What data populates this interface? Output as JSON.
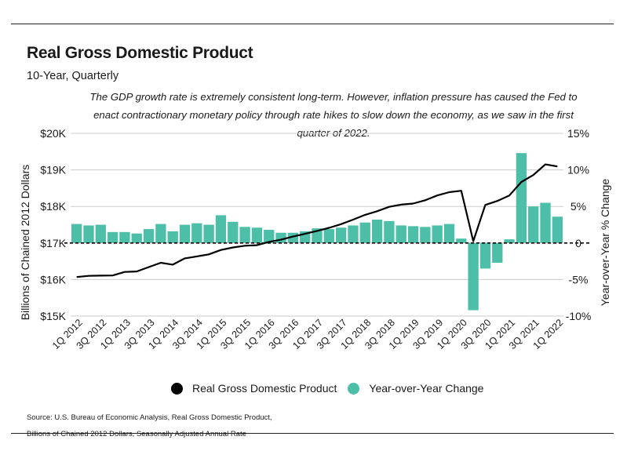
{
  "title": "Real Gross Domestic Product",
  "subtitle": "10-Year, Quarterly",
  "annotation": "The GDP growth rate is extremely consistent long-term. However, inflation pressure has caused the Fed to enact contractionary monetary policy through rate hikes to slow down the economy, as we saw in the first quarter of 2022.",
  "legend": {
    "line_label": "Real Gross Domestic Product",
    "bar_label": "Year-over-Year Change"
  },
  "source_lines": [
    "Source:  U.S. Bureau of Economic Analysis, Real Gross Domestic Product,",
    "Billions of Chained 2012 Dollars, Seasonally Adjusted Annual Rate"
  ],
  "colors": {
    "line": "#000000",
    "bar": "#4dbfa8",
    "grid": "#cccccc",
    "zero_line": "#000000"
  },
  "chart_data": {
    "type": "bar",
    "x": [
      "1Q 2012",
      "2Q 2012",
      "3Q 2012",
      "4Q 2012",
      "1Q 2013",
      "2Q 2013",
      "3Q 2013",
      "4Q 2013",
      "1Q 2014",
      "2Q 2014",
      "3Q 2014",
      "4Q 2014",
      "1Q 2015",
      "2Q 2015",
      "3Q 2015",
      "4Q 2015",
      "1Q 2016",
      "2Q 2016",
      "3Q 2016",
      "4Q 2016",
      "1Q 2017",
      "2Q 2017",
      "3Q 2017",
      "4Q 2017",
      "1Q 2018",
      "2Q 2018",
      "3Q 2018",
      "4Q 2018",
      "1Q 2019",
      "2Q 2019",
      "3Q 2019",
      "4Q 2019",
      "1Q 2020",
      "2Q 2020",
      "3Q 2020",
      "4Q 2020",
      "1Q 2021",
      "2Q 2021",
      "3Q 2021",
      "4Q 2021",
      "1Q 2022"
    ],
    "x_tick_labels": [
      "1Q 2012",
      "3Q 2012",
      "1Q 2013",
      "3Q 2013",
      "1Q 2014",
      "3Q 2014",
      "1Q 2015",
      "3Q 2015",
      "1Q 2016",
      "3Q 2016",
      "1Q 2017",
      "3Q 2017",
      "1Q 2018",
      "3Q 2018",
      "1Q 2019",
      "3Q 2019",
      "1Q 2020",
      "3Q 2020",
      "1Q 2021",
      "3Q 2021",
      "1Q 2022"
    ],
    "series": [
      {
        "name": "Real Gross Domestic Product",
        "type": "line",
        "axis": "left",
        "values": [
          16068,
          16100,
          16107,
          16112,
          16209,
          16222,
          16341,
          16460,
          16407,
          16580,
          16634,
          16688,
          16810,
          16877,
          16925,
          16940,
          17030,
          17090,
          17175,
          17250,
          17330,
          17415,
          17515,
          17640,
          17770,
          17870,
          17990,
          18050,
          18080,
          18170,
          18300,
          18390,
          18430,
          17050,
          18040,
          18150,
          18300,
          18670,
          18860,
          19150,
          19095
        ]
      },
      {
        "name": "Year-over-Year Change",
        "type": "bar",
        "axis": "right",
        "values": [
          2.6,
          2.4,
          2.5,
          1.5,
          1.5,
          1.3,
          1.9,
          2.6,
          1.6,
          2.5,
          2.7,
          2.5,
          3.8,
          2.9,
          2.2,
          2.1,
          1.8,
          1.4,
          1.4,
          1.6,
          2.0,
          1.9,
          2.1,
          2.4,
          2.8,
          3.2,
          3.0,
          2.4,
          2.3,
          2.2,
          2.4,
          2.6,
          0.6,
          -9.2,
          -3.5,
          -2.7,
          0.5,
          12.3,
          5.0,
          5.5,
          3.6
        ]
      }
    ],
    "y_left": {
      "label": "Billions of Chained 2012 Dollars",
      "ylim": [
        15000,
        20000
      ],
      "ticks": [
        15000,
        16000,
        17000,
        18000,
        19000,
        20000
      ],
      "tick_labels": [
        "$15K",
        "$16K",
        "$17K",
        "$18K",
        "$19K",
        "$20K"
      ]
    },
    "y_right": {
      "label": "Year-over-Year % Change",
      "ylim": [
        -10,
        15
      ],
      "ticks": [
        -10,
        -5,
        0,
        5,
        10,
        15
      ],
      "tick_labels": [
        "-10%",
        "-5%",
        "0",
        "5%",
        "10%",
        "15%"
      ]
    },
    "grid": true,
    "legend_position": "bottom"
  }
}
